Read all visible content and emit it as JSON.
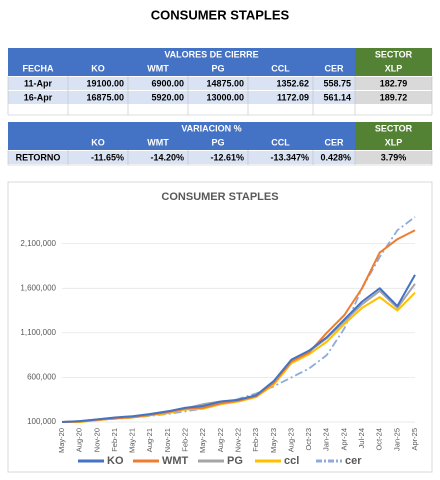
{
  "header": {
    "title": "CONSUMER STAPLES"
  },
  "tables": [
    {
      "header": "VALORES DE CIERRE",
      "sector": "SECTOR",
      "columns": [
        "FECHA",
        "KO",
        "WMT",
        "PG",
        "CCL",
        "CER",
        "XLP"
      ],
      "rows": [
        [
          "11-Apr",
          "19100.00",
          "6900.00",
          "14875.00",
          "1352.62",
          "558.75",
          "182.79"
        ],
        [
          "16-Apr",
          "16875.00",
          "5920.00",
          "13000.00",
          "1172.09",
          "561.14",
          "189.72"
        ]
      ]
    },
    {
      "header": "VARIACION %",
      "sector": "SECTOR",
      "columns": [
        "KO",
        "WMT",
        "PG",
        "CCL",
        "CER",
        "XLP"
      ],
      "rows": [
        [
          "RETORNO",
          "-11.65%",
          "-14.20%",
          "-12.61%",
          "-13.347%",
          "0.428%",
          "3.79%"
        ]
      ]
    }
  ],
  "chart_data": {
    "type": "line",
    "title": "CONSUMER STAPLES",
    "categories": [
      "May-20",
      "Aug-20",
      "Nov-20",
      "Feb-21",
      "May-21",
      "Aug-21",
      "Nov-21",
      "Feb-22",
      "May-22",
      "Aug-22",
      "Nov-22",
      "Feb-23",
      "May-23",
      "Aug-23",
      "Oct-23",
      "Jan-24",
      "Apr-24",
      "Jul-24",
      "Oct-24",
      "Jan-25",
      "Apr-25"
    ],
    "ylim": [
      100000,
      2500000
    ],
    "yticks": [
      {
        "value": 100000,
        "label": "100,000"
      },
      {
        "value": 600000,
        "label": "600,000"
      },
      {
        "value": 1100000,
        "label": "1,100,000"
      },
      {
        "value": 1600000,
        "label": "1,600,000"
      },
      {
        "value": 2100000,
        "label": "2,100,000"
      }
    ],
    "grid": true,
    "series": [
      {
        "name": "KO",
        "color": "#4472c4",
        "values": [
          100000,
          110000,
          130000,
          150000,
          165000,
          190000,
          220000,
          260000,
          280000,
          330000,
          350000,
          400000,
          560000,
          800000,
          900000,
          1050000,
          1250000,
          1450000,
          1600000,
          1400000,
          1750000
        ]
      },
      {
        "name": "WMT",
        "color": "#ed7d31",
        "values": [
          100000,
          105000,
          125000,
          140000,
          155000,
          180000,
          210000,
          250000,
          260000,
          310000,
          340000,
          390000,
          540000,
          780000,
          880000,
          1100000,
          1300000,
          1600000,
          2000000,
          2150000,
          2250000
        ]
      },
      {
        "name": "PG",
        "color": "#a5a5a5",
        "values": [
          100000,
          108000,
          128000,
          148000,
          160000,
          185000,
          215000,
          255000,
          300000,
          330000,
          345000,
          395000,
          550000,
          790000,
          890000,
          1040000,
          1230000,
          1420000,
          1570000,
          1380000,
          1650000
        ]
      },
      {
        "name": "ccl",
        "color": "#ffc000",
        "values": [
          100000,
          100000,
          120000,
          140000,
          150000,
          175000,
          200000,
          240000,
          250000,
          300000,
          330000,
          380000,
          520000,
          760000,
          860000,
          1000000,
          1200000,
          1380000,
          1500000,
          1350000,
          1550000
        ]
      },
      {
        "name": "cer",
        "color": "#8faadc",
        "dashed": true,
        "values": [
          100000,
          110000,
          120000,
          135000,
          150000,
          170000,
          190000,
          220000,
          250000,
          300000,
          360000,
          420000,
          500000,
          600000,
          700000,
          850000,
          1150000,
          1600000,
          1950000,
          2250000,
          2400000
        ]
      }
    ]
  }
}
